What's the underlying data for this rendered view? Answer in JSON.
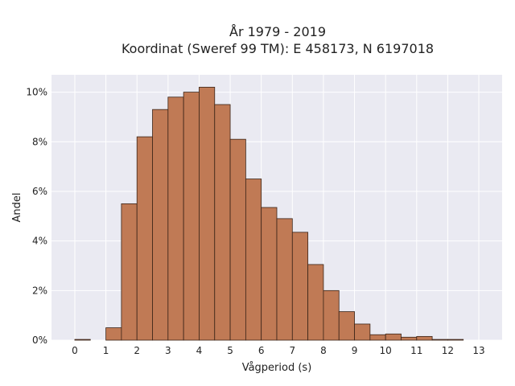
{
  "chart_data": {
    "type": "bar",
    "title": [
      "År 1979 - 2019",
      "Koordinat (Sweref 99 TM): E 458173, N 6197018"
    ],
    "xlabel": "Vågperiod (s)",
    "ylabel": "Andel",
    "xlim": [
      -0.75,
      13.75
    ],
    "ylim": [
      0,
      10.7
    ],
    "xticks": [
      0,
      1,
      2,
      3,
      4,
      5,
      6,
      7,
      8,
      9,
      10,
      11,
      12,
      13
    ],
    "yticks": [
      0,
      2,
      4,
      6,
      8,
      10
    ],
    "ytick_suffix": "%",
    "bin_width": 0.5,
    "bin_starts": [
      0,
      0.5,
      1,
      1.5,
      2,
      2.5,
      3,
      3.5,
      4,
      4.5,
      5,
      5.5,
      6,
      6.5,
      7,
      7.5,
      8,
      8.5,
      9,
      9.5,
      10,
      10.5,
      11,
      11.5,
      12,
      12.5
    ],
    "values": [
      0.03,
      0,
      0.5,
      5.5,
      8.2,
      9.3,
      9.8,
      10.0,
      10.2,
      9.5,
      8.1,
      6.5,
      5.35,
      4.9,
      4.35,
      3.05,
      2.0,
      1.15,
      0.65,
      0.22,
      0.25,
      0.12,
      0.15,
      0.03,
      0.03,
      0
    ],
    "grid": true,
    "bar_color": "#c07a55",
    "bar_edge_color": "#3a2418",
    "plot_bg": "#eaeaf2",
    "grid_color": "#ffffff"
  }
}
